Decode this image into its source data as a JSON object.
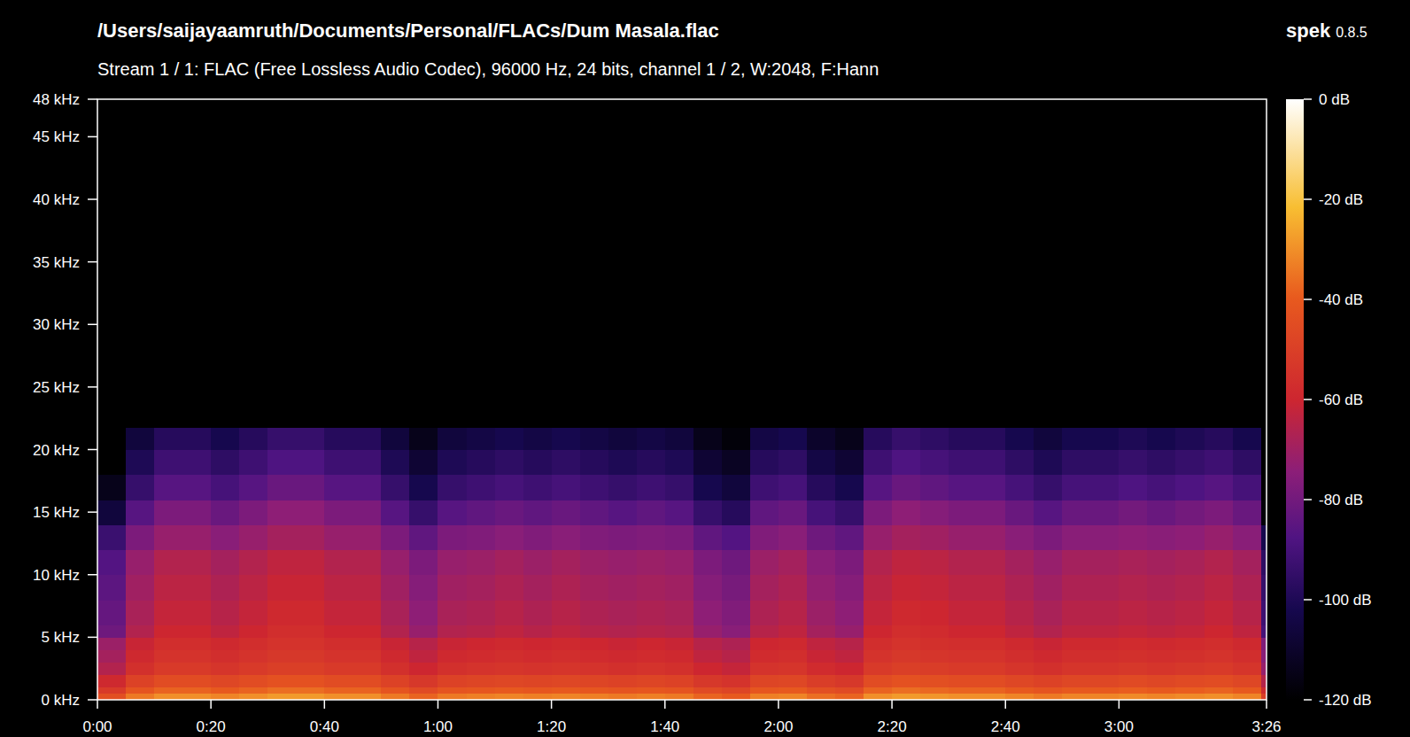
{
  "chart_data": {
    "type": "heatmap",
    "title": "/Users/saijayaamruth/Documents/Personal/FLACs/Dum Masala.flac",
    "subtitle": "Stream 1 / 1: FLAC (Free Lossless Audio Codec), 96000 Hz, 24 bits, channel 1 / 2, W:2048, F:Hann",
    "annotations": [
      "spek",
      "0.8.5"
    ],
    "xlim": [
      0,
      206
    ],
    "ylim": [
      0,
      48
    ],
    "xticks": [
      {
        "value": 0,
        "label": "0:00"
      },
      {
        "value": 20,
        "label": "0:20"
      },
      {
        "value": 40,
        "label": "0:40"
      },
      {
        "value": 60,
        "label": "1:00"
      },
      {
        "value": 80,
        "label": "1:20"
      },
      {
        "value": 100,
        "label": "1:40"
      },
      {
        "value": 120,
        "label": "2:00"
      },
      {
        "value": 140,
        "label": "2:20"
      },
      {
        "value": 160,
        "label": "2:40"
      },
      {
        "value": 180,
        "label": "3:00"
      },
      {
        "value": 206,
        "label": "3:26"
      }
    ],
    "yticks": [
      {
        "value": 0,
        "label": "0 kHz"
      },
      {
        "value": 5,
        "label": "5 kHz"
      },
      {
        "value": 10,
        "label": "10 kHz"
      },
      {
        "value": 15,
        "label": "15 kHz"
      },
      {
        "value": 20,
        "label": "20 kHz"
      },
      {
        "value": 25,
        "label": "25 kHz"
      },
      {
        "value": 30,
        "label": "30 kHz"
      },
      {
        "value": 35,
        "label": "35 kHz"
      },
      {
        "value": 40,
        "label": "40 kHz"
      },
      {
        "value": 45,
        "label": "45 kHz"
      },
      {
        "value": 48,
        "label": "48 kHz"
      }
    ],
    "colorbar": {
      "range": [
        -120,
        0
      ],
      "ticks": [
        {
          "value": 0,
          "label": "0 dB"
        },
        {
          "value": -20,
          "label": "-20 dB"
        },
        {
          "value": -40,
          "label": "-40 dB"
        },
        {
          "value": -60,
          "label": "-60 dB"
        },
        {
          "value": -80,
          "label": "-80 dB"
        },
        {
          "value": -100,
          "label": "-100 dB"
        },
        {
          "value": -120,
          "label": "-120 dB"
        }
      ]
    },
    "x_edges": [
      0,
      5,
      10,
      15,
      20,
      25,
      30,
      35,
      40,
      45,
      50,
      55,
      60,
      65,
      70,
      75,
      80,
      85,
      90,
      95,
      100,
      105,
      110,
      115,
      120,
      125,
      130,
      135,
      140,
      145,
      150,
      155,
      160,
      165,
      170,
      175,
      180,
      185,
      190,
      195,
      200,
      205,
      206
    ],
    "y_edges": [
      0,
      0.5,
      1,
      2,
      3,
      4,
      5,
      6,
      8,
      10,
      12,
      14,
      16,
      18,
      20,
      21.7
    ],
    "cells": [
      [
        -44,
        -34,
        -30,
        -30,
        -32,
        -30,
        -28,
        -28,
        -30,
        -30,
        -34,
        -38,
        -34,
        -33,
        -32,
        -33,
        -32,
        -33,
        -34,
        -33,
        -34,
        -38,
        -40,
        -33,
        -32,
        -36,
        -38,
        -30,
        -28,
        -29,
        -30,
        -30,
        -32,
        -34,
        -32,
        -32,
        -31,
        -32,
        -31,
        -30,
        -32,
        -50
      ],
      [
        -52,
        -42,
        -38,
        -38,
        -40,
        -38,
        -36,
        -36,
        -38,
        -38,
        -42,
        -46,
        -42,
        -41,
        -40,
        -41,
        -40,
        -41,
        -42,
        -41,
        -42,
        -46,
        -48,
        -41,
        -40,
        -44,
        -46,
        -38,
        -36,
        -37,
        -38,
        -38,
        -40,
        -42,
        -40,
        -40,
        -39,
        -40,
        -39,
        -38,
        -40,
        -58
      ],
      [
        -59,
        -49,
        -45,
        -45,
        -47,
        -45,
        -43,
        -43,
        -45,
        -45,
        -49,
        -53,
        -49,
        -48,
        -47,
        -48,
        -47,
        -48,
        -49,
        -48,
        -49,
        -53,
        -55,
        -48,
        -47,
        -51,
        -53,
        -45,
        -43,
        -44,
        -45,
        -45,
        -47,
        -49,
        -47,
        -47,
        -46,
        -47,
        -46,
        -45,
        -47,
        -65
      ],
      [
        -66,
        -56,
        -52,
        -52,
        -54,
        -52,
        -50,
        -50,
        -52,
        -52,
        -56,
        -60,
        -56,
        -55,
        -54,
        -55,
        -54,
        -55,
        -56,
        -55,
        -56,
        -60,
        -62,
        -55,
        -54,
        -58,
        -60,
        -52,
        -50,
        -51,
        -52,
        -52,
        -54,
        -56,
        -54,
        -54,
        -53,
        -54,
        -53,
        -52,
        -54,
        -72
      ],
      [
        -69,
        -59,
        -55,
        -55,
        -57,
        -55,
        -53,
        -53,
        -55,
        -55,
        -59,
        -63,
        -59,
        -58,
        -57,
        -58,
        -57,
        -58,
        -59,
        -58,
        -59,
        -63,
        -65,
        -58,
        -57,
        -61,
        -63,
        -55,
        -53,
        -54,
        -55,
        -55,
        -57,
        -59,
        -57,
        -57,
        -56,
        -57,
        -56,
        -55,
        -57,
        -75
      ],
      [
        -71,
        -61,
        -57,
        -57,
        -59,
        -57,
        -55,
        -55,
        -57,
        -57,
        -61,
        -65,
        -61,
        -60,
        -59,
        -60,
        -59,
        -60,
        -61,
        -60,
        -61,
        -65,
        -67,
        -60,
        -59,
        -63,
        -65,
        -57,
        -55,
        -56,
        -57,
        -57,
        -59,
        -61,
        -59,
        -59,
        -58,
        -59,
        -58,
        -57,
        -59,
        -77
      ],
      [
        -81,
        -66,
        -60,
        -60,
        -63,
        -60,
        -57,
        -57,
        -60,
        -60,
        -66,
        -72,
        -66,
        -65,
        -63,
        -65,
        -63,
        -65,
        -66,
        -65,
        -66,
        -72,
        -75,
        -65,
        -63,
        -69,
        -72,
        -60,
        -57,
        -58,
        -60,
        -60,
        -63,
        -66,
        -63,
        -63,
        -62,
        -63,
        -62,
        -60,
        -63,
        -90
      ],
      [
        -83,
        -68,
        -62,
        -62,
        -65,
        -62,
        -59,
        -59,
        -62,
        -62,
        -68,
        -74,
        -68,
        -67,
        -65,
        -67,
        -65,
        -67,
        -68,
        -67,
        -68,
        -74,
        -77,
        -67,
        -65,
        -71,
        -74,
        -62,
        -59,
        -60,
        -62,
        -62,
        -65,
        -68,
        -65,
        -65,
        -64,
        -65,
        -64,
        -62,
        -65,
        -92
      ],
      [
        -85,
        -70,
        -64,
        -64,
        -67,
        -64,
        -61,
        -61,
        -64,
        -64,
        -70,
        -76,
        -70,
        -69,
        -67,
        -69,
        -67,
        -69,
        -70,
        -69,
        -70,
        -76,
        -79,
        -69,
        -67,
        -73,
        -76,
        -64,
        -61,
        -62,
        -64,
        -64,
        -67,
        -70,
        -67,
        -67,
        -66,
        -67,
        -66,
        -64,
        -67,
        -94
      ],
      [
        -87,
        -72,
        -66,
        -66,
        -69,
        -66,
        -63,
        -63,
        -66,
        -66,
        -72,
        -78,
        -72,
        -71,
        -69,
        -71,
        -69,
        -71,
        -72,
        -71,
        -72,
        -78,
        -81,
        -71,
        -69,
        -75,
        -78,
        -66,
        -63,
        -64,
        -66,
        -66,
        -69,
        -72,
        -69,
        -69,
        -68,
        -69,
        -68,
        -66,
        -69,
        -96
      ],
      [
        -93,
        -78,
        -72,
        -72,
        -75,
        -72,
        -69,
        -69,
        -72,
        -72,
        -78,
        -84,
        -78,
        -77,
        -75,
        -77,
        -75,
        -77,
        -78,
        -77,
        -78,
        -84,
        -87,
        -77,
        -75,
        -81,
        -84,
        -72,
        -69,
        -70,
        -72,
        -72,
        -75,
        -78,
        -75,
        -75,
        -74,
        -75,
        -74,
        -72,
        -75,
        -102
      ],
      [
        -106,
        -86,
        -78,
        -78,
        -82,
        -78,
        -74,
        -74,
        -78,
        -78,
        -86,
        -94,
        -86,
        -84,
        -82,
        -84,
        -82,
        -84,
        -86,
        -84,
        -86,
        -94,
        -98,
        -84,
        -82,
        -90,
        -94,
        -78,
        -74,
        -76,
        -78,
        -78,
        -82,
        -86,
        -82,
        -82,
        -80,
        -82,
        -80,
        -78,
        -82,
        -118
      ],
      [
        -114,
        -94,
        -86,
        -86,
        -90,
        -86,
        -82,
        -82,
        -86,
        -86,
        -94,
        -102,
        -94,
        -92,
        -90,
        -92,
        -90,
        -92,
        -94,
        -92,
        -94,
        -102,
        -106,
        -92,
        -90,
        -98,
        -102,
        -86,
        -82,
        -84,
        -86,
        -86,
        -90,
        -94,
        -90,
        -90,
        -88,
        -90,
        -88,
        -86,
        -90,
        -120
      ],
      [
        -120,
        -100,
        -92,
        -92,
        -96,
        -92,
        -88,
        -88,
        -92,
        -92,
        -100,
        -108,
        -100,
        -98,
        -96,
        -98,
        -96,
        -98,
        -100,
        -98,
        -100,
        -108,
        -112,
        -98,
        -96,
        -104,
        -108,
        -92,
        -88,
        -90,
        -92,
        -92,
        -96,
        -100,
        -96,
        -96,
        -94,
        -96,
        -94,
        -92,
        -96,
        -120
      ],
      [
        -120,
        -106,
        -98,
        -98,
        -102,
        -98,
        -94,
        -94,
        -98,
        -98,
        -106,
        -114,
        -106,
        -104,
        -102,
        -104,
        -102,
        -104,
        -106,
        -104,
        -106,
        -114,
        -118,
        -104,
        -102,
        -110,
        -114,
        -98,
        -94,
        -96,
        -98,
        -98,
        -102,
        -106,
        -102,
        -102,
        -100,
        -102,
        -100,
        -98,
        -102,
        -120
      ]
    ]
  }
}
